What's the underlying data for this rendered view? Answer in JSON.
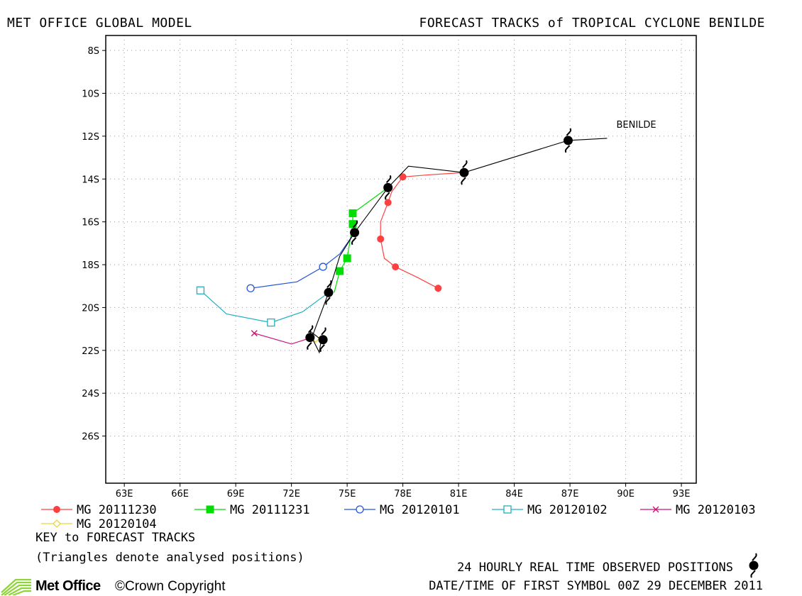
{
  "header": {
    "left": "MET OFFICE GLOBAL MODEL",
    "right": "FORECAST TRACKS of TROPICAL CYCLONE BENILDE"
  },
  "footer": {
    "key_title": "KEY to FORECAST TRACKS",
    "key_note": "(Triangles denote analysed positions)",
    "observed_label": "24 HOURLY REAL TIME OBSERVED POSITIONS",
    "datetime_label": "DATE/TIME OF FIRST SYMBOL 00Z 29 DECEMBER 2011",
    "logo_text": "Met Office",
    "copyright": "©Crown Copyright"
  },
  "chart_data": {
    "type": "line",
    "title": "FORECAST TRACKS of TROPICAL CYCLONE BENILDE",
    "x_axis": {
      "range": [
        62,
        93.8
      ],
      "ticks": [
        63,
        66,
        69,
        72,
        75,
        78,
        81,
        84,
        87,
        90,
        93
      ],
      "tick_labels": [
        "63E",
        "66E",
        "69E",
        "72E",
        "75E",
        "78E",
        "81E",
        "84E",
        "87E",
        "90E",
        "93E"
      ],
      "grid": true
    },
    "y_axis": {
      "range": [
        -7.3,
        -28.2
      ],
      "ticks": [
        -8,
        -10,
        -12,
        -14,
        -16,
        -18,
        -20,
        -22,
        -24,
        -26
      ],
      "tick_labels": [
        "8S",
        "10S",
        "12S",
        "14S",
        "16S",
        "18S",
        "20S",
        "22S",
        "24S",
        "26S"
      ],
      "grid": true
    },
    "storm_label": {
      "text": "BENILDE",
      "lon": 89.5,
      "lat": -11.6
    },
    "observed_track": {
      "color": "#000000",
      "points": [
        [
          89.0,
          -12.1
        ],
        [
          86.9,
          -12.2
        ],
        [
          81.3,
          -13.7
        ],
        [
          78.3,
          -13.4
        ],
        [
          77.2,
          -14.4
        ],
        [
          75.4,
          -16.5
        ],
        [
          74.6,
          -17.6
        ],
        [
          74.0,
          -19.3
        ],
        [
          73.1,
          -21.4
        ],
        [
          73.0,
          -21.1
        ],
        [
          73.6,
          -21.5
        ],
        [
          73.5,
          -22.1
        ],
        [
          73.1,
          -21.4
        ]
      ],
      "symbol_positions": [
        [
          86.9,
          -12.2
        ],
        [
          81.3,
          -13.7
        ],
        [
          77.2,
          -14.4
        ],
        [
          75.4,
          -16.5
        ],
        [
          74.0,
          -19.3
        ],
        [
          73.0,
          -21.4
        ],
        [
          73.7,
          -21.5
        ]
      ]
    },
    "series": [
      {
        "name": "MG 20111230",
        "color": "#ff4040",
        "marker": "filled-circle",
        "points": [
          [
            81.3,
            -13.7
          ],
          [
            79.5,
            -13.8
          ],
          [
            78.0,
            -13.9
          ],
          [
            77.4,
            -14.6
          ],
          [
            77.2,
            -15.1
          ],
          [
            76.8,
            -16.0
          ],
          [
            76.8,
            -16.8
          ],
          [
            77.0,
            -17.7
          ],
          [
            77.6,
            -18.1
          ],
          [
            78.8,
            -18.6
          ],
          [
            79.9,
            -19.1
          ]
        ],
        "marker_points": [
          [
            78.0,
            -13.9
          ],
          [
            77.2,
            -15.1
          ],
          [
            76.8,
            -16.8
          ],
          [
            77.6,
            -18.1
          ],
          [
            79.9,
            -19.1
          ]
        ]
      },
      {
        "name": "MG 20111231",
        "color": "#00dd00",
        "marker": "filled-square",
        "points": [
          [
            77.2,
            -14.4
          ],
          [
            75.3,
            -15.6
          ],
          [
            75.3,
            -16.1
          ],
          [
            75.0,
            -17.7
          ],
          [
            74.6,
            -18.3
          ],
          [
            74.3,
            -19.3
          ]
        ],
        "marker_points": [
          [
            75.3,
            -15.6
          ],
          [
            75.3,
            -16.1
          ],
          [
            75.0,
            -17.7
          ],
          [
            74.6,
            -18.3
          ]
        ]
      },
      {
        "name": "MG 20120101",
        "color": "#2255dd",
        "marker": "open-circle",
        "points": [
          [
            75.4,
            -16.5
          ],
          [
            74.6,
            -17.5
          ],
          [
            73.7,
            -18.1
          ],
          [
            72.3,
            -18.8
          ],
          [
            69.8,
            -19.1
          ]
        ],
        "marker_points": [
          [
            73.7,
            -18.1
          ],
          [
            69.8,
            -19.1
          ]
        ]
      },
      {
        "name": "MG 20120102",
        "color": "#20b0c0",
        "marker": "open-square",
        "points": [
          [
            74.0,
            -19.3
          ],
          [
            72.6,
            -20.2
          ],
          [
            70.9,
            -20.7
          ],
          [
            68.5,
            -20.3
          ],
          [
            67.1,
            -19.2
          ]
        ],
        "marker_points": [
          [
            70.9,
            -20.7
          ],
          [
            67.1,
            -19.2
          ]
        ]
      },
      {
        "name": "MG 20120103",
        "color": "#cc1177",
        "marker": "cross",
        "points": [
          [
            73.1,
            -21.4
          ],
          [
            72.0,
            -21.7
          ],
          [
            70.0,
            -21.2
          ]
        ],
        "marker_points": [
          [
            70.0,
            -21.2
          ]
        ]
      },
      {
        "name": "MG 20120104",
        "color": "#e8d840",
        "marker": "open-diamond",
        "points": [
          [
            73.1,
            -21.4
          ],
          [
            73.3,
            -21.45
          ]
        ],
        "marker_points": [
          [
            73.3,
            -21.45
          ]
        ]
      }
    ],
    "legend_placement": "bottom"
  }
}
